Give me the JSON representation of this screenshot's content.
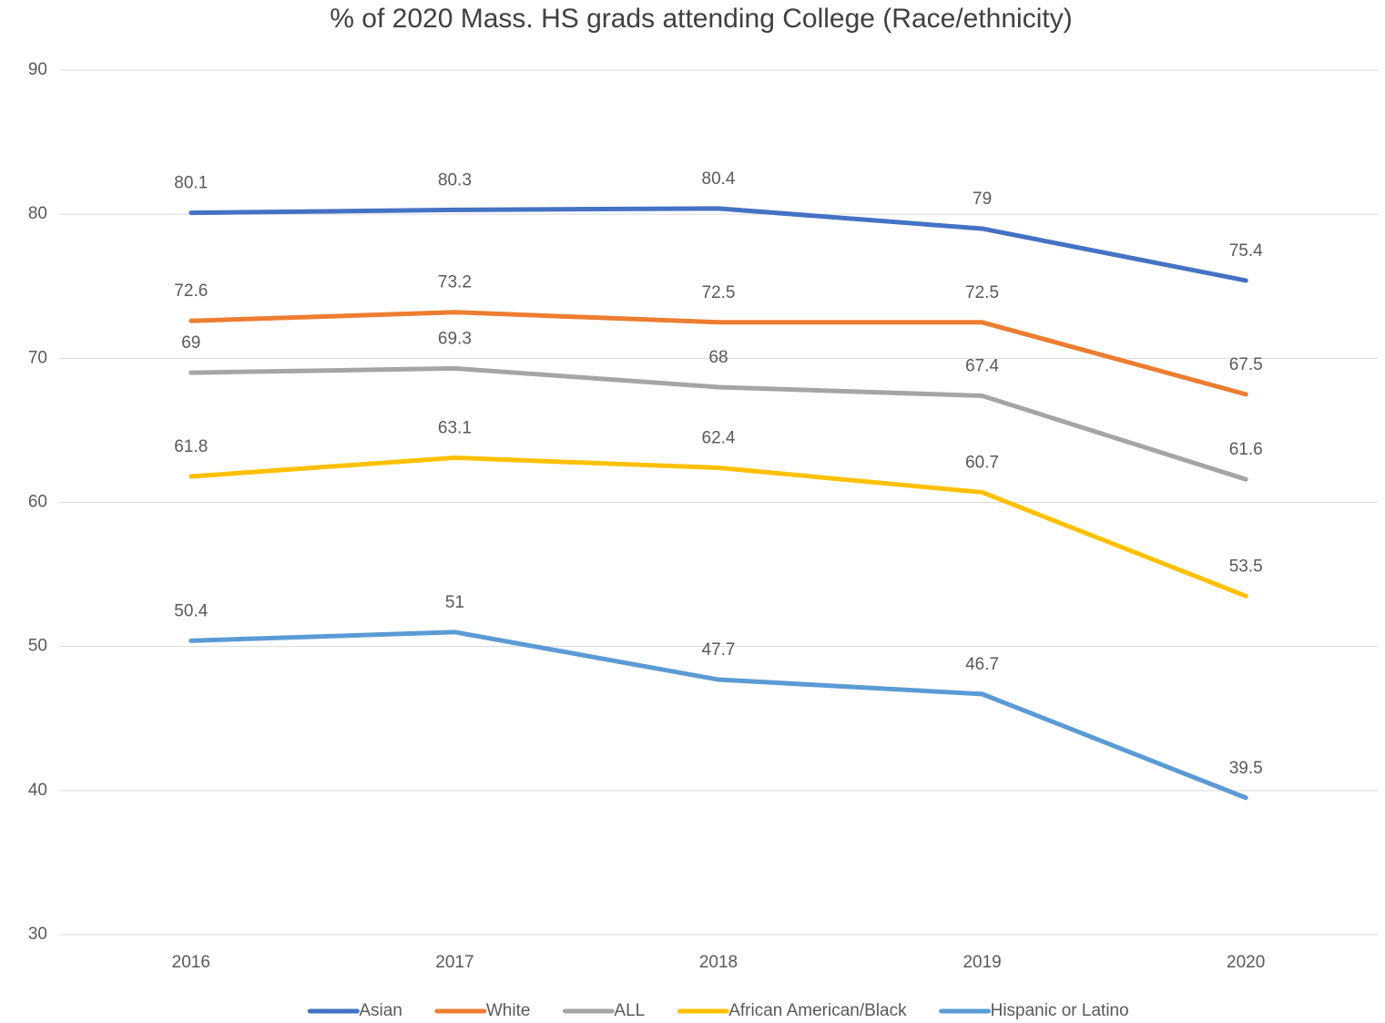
{
  "chart_data": {
    "type": "line",
    "title": "% of 2020 Mass. HS grads attending College (Race/ethnicity)",
    "categories": [
      "2016",
      "2017",
      "2018",
      "2019",
      "2020"
    ],
    "series": [
      {
        "name": "Asian",
        "color": "#4472c4",
        "values": [
          80.1,
          80.3,
          80.4,
          79,
          75.4
        ]
      },
      {
        "name": "White",
        "color": "#ed7d31",
        "values": [
          72.6,
          73.2,
          72.5,
          72.5,
          67.5
        ]
      },
      {
        "name": "ALL",
        "color": "#a5a5a5",
        "values": [
          69,
          69.3,
          68,
          67.4,
          61.6
        ]
      },
      {
        "name": "African American/Black",
        "color": "#ffc000",
        "values": [
          61.8,
          63.1,
          62.4,
          60.7,
          53.5
        ]
      },
      {
        "name": "Hispanic or Latino",
        "color": "#5b9bd5",
        "values": [
          50.4,
          51,
          47.7,
          46.7,
          39.5
        ]
      }
    ],
    "ylim": [
      30,
      90
    ],
    "yticks": [
      30,
      40,
      50,
      60,
      70,
      80,
      90
    ],
    "grid": true,
    "legend": "bottom"
  }
}
